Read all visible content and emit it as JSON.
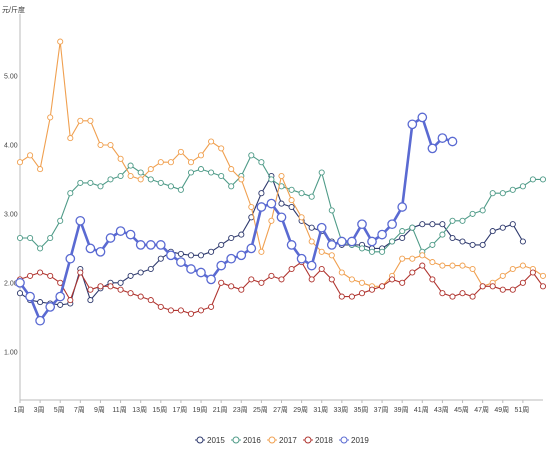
{
  "chart_data": {
    "type": "line",
    "unit": "元/斤度",
    "ylim": [
      0.3,
      5.9
    ],
    "yticks": [
      "1.00",
      "2.00",
      "3.00",
      "4.00",
      "5.00"
    ],
    "ytick_values": [
      1,
      2,
      3,
      4,
      5
    ],
    "xlim": [
      1,
      53
    ],
    "xticks": [
      "1周",
      "3周",
      "5周",
      "7周",
      "9周",
      "11周",
      "13周",
      "15周",
      "17周",
      "19周",
      "21周",
      "23周",
      "25周",
      "27周",
      "29周",
      "31周",
      "33周",
      "35周",
      "37周",
      "39周",
      "41周",
      "43周",
      "45周",
      "47周",
      "49周",
      "51周"
    ],
    "grid": false,
    "legend_position": "bottom",
    "series": [
      {
        "name": "2015",
        "color": "#2f3a6e",
        "x": [
          1,
          2,
          3,
          4,
          5,
          6,
          7,
          8,
          9,
          10,
          11,
          12,
          13,
          14,
          15,
          16,
          17,
          18,
          19,
          20,
          21,
          22,
          23,
          24,
          25,
          26,
          27,
          28,
          29,
          30,
          31,
          32,
          33,
          34,
          35,
          36,
          37,
          38,
          39,
          40,
          41,
          42,
          43,
          44,
          45,
          46,
          47,
          48,
          49,
          50,
          51
        ],
        "values": [
          1.85,
          1.75,
          1.72,
          1.7,
          1.68,
          1.7,
          2.2,
          1.75,
          1.92,
          2.0,
          2.0,
          2.1,
          2.15,
          2.2,
          2.35,
          2.45,
          2.42,
          2.4,
          2.4,
          2.45,
          2.55,
          2.65,
          2.7,
          2.95,
          3.3,
          3.55,
          3.15,
          3.1,
          2.9,
          2.8,
          2.75,
          2.6,
          2.55,
          2.55,
          2.55,
          2.5,
          2.5,
          2.6,
          2.65,
          2.8,
          2.85,
          2.85,
          2.85,
          2.65,
          2.6,
          2.55,
          2.55,
          2.75,
          2.8,
          2.85,
          2.6
        ]
      },
      {
        "name": "2016",
        "color": "#4f9b88",
        "x": [
          1,
          2,
          3,
          4,
          5,
          6,
          7,
          8,
          9,
          10,
          11,
          12,
          13,
          14,
          15,
          16,
          17,
          18,
          19,
          20,
          21,
          22,
          23,
          24,
          25,
          26,
          27,
          28,
          29,
          30,
          31,
          32,
          33,
          34,
          35,
          36,
          37,
          38,
          39,
          40,
          41,
          42,
          43,
          44,
          45,
          46,
          47,
          48,
          49,
          50,
          51,
          52,
          53
        ],
        "values": [
          2.65,
          2.65,
          2.5,
          2.65,
          2.9,
          3.3,
          3.45,
          3.45,
          3.4,
          3.5,
          3.55,
          3.7,
          3.6,
          3.5,
          3.45,
          3.4,
          3.35,
          3.6,
          3.65,
          3.6,
          3.55,
          3.4,
          3.55,
          3.85,
          3.75,
          3.5,
          3.4,
          3.35,
          3.3,
          3.25,
          3.6,
          3.05,
          2.6,
          2.55,
          2.5,
          2.45,
          2.45,
          2.6,
          2.75,
          2.8,
          2.45,
          2.55,
          2.7,
          2.9,
          2.9,
          3.0,
          3.05,
          3.3,
          3.3,
          3.35,
          3.4,
          3.5,
          3.5
        ]
      },
      {
        "name": "2017",
        "color": "#f0a050",
        "x": [
          1,
          2,
          3,
          4,
          5,
          6,
          7,
          8,
          9,
          10,
          11,
          12,
          13,
          14,
          15,
          16,
          17,
          18,
          19,
          20,
          21,
          22,
          23,
          24,
          25,
          26,
          27,
          28,
          29,
          30,
          31,
          32,
          33,
          34,
          35,
          36,
          37,
          38,
          39,
          40,
          41,
          42,
          43,
          44,
          45,
          46,
          47,
          48,
          49,
          50,
          51,
          52,
          53
        ],
        "values": [
          3.75,
          3.85,
          3.65,
          4.4,
          5.5,
          4.1,
          4.35,
          4.35,
          4.0,
          4.0,
          3.8,
          3.55,
          3.5,
          3.65,
          3.75,
          3.75,
          3.9,
          3.75,
          3.85,
          4.05,
          3.95,
          3.65,
          3.5,
          3.1,
          2.45,
          2.9,
          3.55,
          3.2,
          2.95,
          2.6,
          2.45,
          2.4,
          2.15,
          2.05,
          2.0,
          1.95,
          1.95,
          2.1,
          2.35,
          2.35,
          2.4,
          2.3,
          2.25,
          2.25,
          2.25,
          2.2,
          1.95,
          2.0,
          2.1,
          2.2,
          2.25,
          2.2,
          2.1
        ]
      },
      {
        "name": "2018",
        "color": "#b03530",
        "x": [
          1,
          2,
          3,
          4,
          5,
          6,
          7,
          8,
          9,
          10,
          11,
          12,
          13,
          14,
          15,
          16,
          17,
          18,
          19,
          20,
          21,
          22,
          23,
          24,
          25,
          26,
          27,
          28,
          29,
          30,
          31,
          32,
          33,
          34,
          35,
          36,
          37,
          38,
          39,
          40,
          41,
          42,
          43,
          44,
          45,
          46,
          47,
          48,
          49,
          50,
          51,
          52,
          53
        ],
        "values": [
          2.05,
          2.1,
          2.15,
          2.1,
          2.0,
          1.75,
          2.15,
          1.9,
          1.95,
          1.95,
          1.9,
          1.85,
          1.8,
          1.75,
          1.65,
          1.6,
          1.6,
          1.55,
          1.6,
          1.65,
          2.0,
          1.95,
          1.9,
          2.05,
          2.0,
          2.1,
          2.05,
          2.2,
          2.3,
          2.05,
          2.2,
          2.05,
          1.8,
          1.8,
          1.85,
          1.9,
          1.95,
          2.05,
          2.0,
          2.15,
          2.25,
          2.05,
          1.85,
          1.8,
          1.85,
          1.8,
          1.95,
          1.95,
          1.9,
          1.9,
          2.0,
          2.15,
          1.95
        ]
      },
      {
        "name": "2019",
        "color": "#5a6ad2",
        "x": [
          1,
          2,
          3,
          4,
          5,
          6,
          7,
          8,
          9,
          10,
          11,
          12,
          13,
          14,
          15,
          16,
          17,
          18,
          19,
          20,
          21,
          22,
          23,
          24,
          25,
          26,
          27,
          28,
          29,
          30,
          31,
          32,
          33,
          34,
          35,
          36,
          37,
          38,
          39,
          40,
          41,
          42,
          43,
          44
        ],
        "values": [
          2.0,
          1.8,
          1.45,
          1.65,
          1.8,
          2.35,
          2.9,
          2.5,
          2.45,
          2.65,
          2.75,
          2.7,
          2.55,
          2.55,
          2.55,
          2.4,
          2.3,
          2.2,
          2.15,
          2.05,
          2.25,
          2.35,
          2.4,
          2.5,
          3.1,
          3.15,
          2.95,
          2.55,
          2.35,
          2.25,
          2.8,
          2.55,
          2.6,
          2.6,
          2.85,
          2.6,
          2.7,
          2.85,
          3.1,
          4.3,
          4.4,
          3.95,
          4.1,
          4.05
        ]
      }
    ]
  }
}
